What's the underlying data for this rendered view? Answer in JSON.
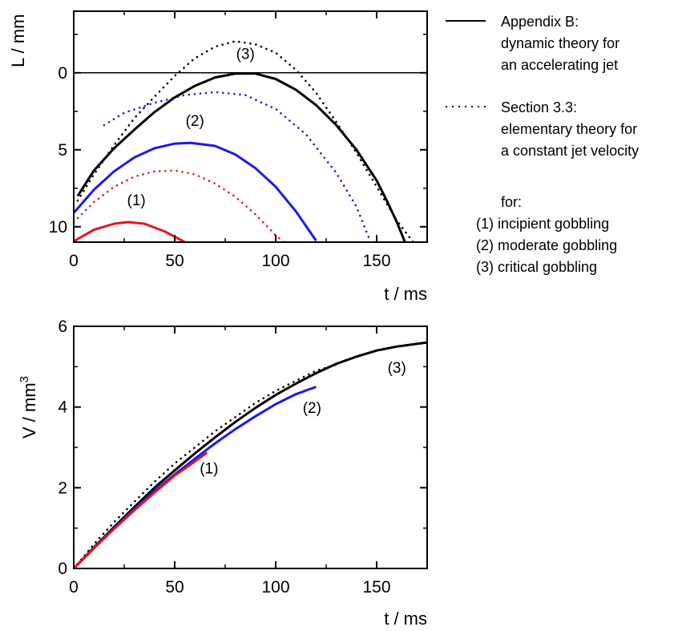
{
  "colors": {
    "axis": "#000000",
    "red": "#e8141b",
    "blue": "#1a1aee",
    "black": "#000000"
  },
  "legend": {
    "solid_lines": [
      "Appendix B:",
      "dynamic theory for",
      "an accelerating jet"
    ],
    "dotted_lines": [
      "Section 3.3:",
      "elementary theory for",
      "a constant jet velocity"
    ],
    "for_label": "for:",
    "cases": [
      "(1) incipient gobbling",
      "(2) moderate gobbling",
      "(3) critical gobbling"
    ]
  },
  "chart_data": [
    {
      "type": "line",
      "xlabel": "t / ms",
      "ylabel": "L / mm",
      "xlim": [
        0,
        175
      ],
      "ylim": [
        11,
        -4
      ],
      "y_inverted": true,
      "xticks": [
        "0",
        "50",
        "100",
        "150"
      ],
      "yticks": [
        "0",
        "5",
        "10"
      ],
      "xtick_values": [
        0,
        50,
        100,
        150
      ],
      "ytick_values": [
        0,
        5,
        10
      ],
      "reference_line": {
        "y": 0
      },
      "series": [
        {
          "case": "(1)",
          "style": "solid",
          "color": "#e8141b",
          "x": [
            0,
            10,
            20,
            27,
            35,
            45,
            55
          ],
          "y": [
            10.95,
            10.2,
            9.8,
            9.7,
            9.8,
            10.3,
            11.0
          ]
        },
        {
          "case": "(1)",
          "style": "dotted",
          "color": "#e8141b",
          "x": [
            0,
            10,
            20,
            30,
            40,
            50,
            60,
            70,
            80,
            90,
            100,
            104
          ],
          "y": [
            9.7,
            8.4,
            7.4,
            6.75,
            6.4,
            6.35,
            6.6,
            7.2,
            8.05,
            9.2,
            10.55,
            11.0
          ]
        },
        {
          "case": "(2)",
          "style": "solid",
          "color": "#1a1aee",
          "x": [
            0,
            10,
            20,
            30,
            40,
            50,
            58,
            70,
            80,
            90,
            100,
            110,
            120
          ],
          "y": [
            9.1,
            7.6,
            6.4,
            5.5,
            4.9,
            4.6,
            4.55,
            4.75,
            5.3,
            6.2,
            7.4,
            9.0,
            10.9
          ]
        },
        {
          "case": "(2)",
          "style": "dotted",
          "color": "#1a1aee",
          "x": [
            15,
            25,
            40,
            55,
            70,
            85,
            100,
            115,
            130,
            140,
            147
          ],
          "y": [
            3.4,
            2.6,
            1.95,
            1.45,
            1.25,
            1.45,
            2.35,
            4.0,
            6.5,
            8.7,
            11.0
          ]
        },
        {
          "case": "(3)",
          "style": "solid",
          "color": "#000000",
          "x": [
            2,
            10,
            20,
            30,
            40,
            50,
            60,
            70,
            80,
            90,
            100,
            110,
            120,
            130,
            140,
            150,
            155,
            160,
            164
          ],
          "y": [
            8.0,
            6.35,
            4.9,
            3.7,
            2.55,
            1.6,
            0.85,
            0.3,
            0.05,
            0.05,
            0.4,
            1.1,
            2.1,
            3.4,
            5.0,
            7.0,
            8.3,
            9.7,
            11.0
          ]
        },
        {
          "case": "(3)",
          "style": "dotted",
          "color": "#000000",
          "x": [
            2,
            10,
            20,
            30,
            40,
            50,
            60,
            70,
            80,
            90,
            100,
            110,
            120,
            130,
            140,
            150,
            160,
            168
          ],
          "y": [
            8.3,
            6.6,
            4.7,
            2.95,
            1.55,
            0.2,
            -0.95,
            -1.7,
            -2.05,
            -1.85,
            -1.3,
            -0.2,
            1.3,
            3.2,
            5.2,
            7.4,
            9.6,
            11.0
          ]
        }
      ],
      "annotations": [
        {
          "text": "(1)",
          "x": 31,
          "y": 8.6
        },
        {
          "text": "(2)",
          "x": 60,
          "y": 3.45
        },
        {
          "text": "(3)",
          "x": 85,
          "y": -0.9
        }
      ]
    },
    {
      "type": "line",
      "xlabel": "t / ms",
      "ylabel": "V / mm",
      "ylabel_superscript": "3",
      "xlim": [
        0,
        175
      ],
      "ylim": [
        0,
        6
      ],
      "xticks": [
        "0",
        "50",
        "100",
        "150"
      ],
      "yticks": [
        "0",
        "2",
        "4",
        "6"
      ],
      "xtick_values": [
        0,
        50,
        100,
        150
      ],
      "ytick_values": [
        0,
        2,
        4,
        6
      ],
      "series": [
        {
          "case": "(3)",
          "style": "dotted",
          "color": "#000000",
          "x": [
            0,
            10,
            20,
            30,
            40,
            50,
            60,
            70,
            80,
            90,
            100,
            110,
            120,
            130
          ],
          "y": [
            0,
            0.6,
            1.15,
            1.65,
            2.15,
            2.6,
            3.0,
            3.4,
            3.75,
            4.1,
            4.4,
            4.65,
            4.9,
            5.05
          ]
        },
        {
          "case": "(3)",
          "style": "solid",
          "color": "#000000",
          "x": [
            0,
            10,
            20,
            30,
            40,
            50,
            60,
            70,
            80,
            90,
            100,
            110,
            120,
            130,
            140,
            150,
            160,
            175
          ],
          "y": [
            0,
            0.52,
            1.03,
            1.52,
            2.0,
            2.43,
            2.85,
            3.25,
            3.63,
            3.98,
            4.3,
            4.58,
            4.84,
            5.07,
            5.25,
            5.4,
            5.5,
            5.6
          ]
        },
        {
          "case": "(2)",
          "style": "solid",
          "color": "#1a1aee",
          "x": [
            0,
            10,
            20,
            30,
            40,
            50,
            60,
            70,
            80,
            90,
            100,
            110,
            120
          ],
          "y": [
            0,
            0.5,
            1.0,
            1.47,
            1.92,
            2.33,
            2.72,
            3.1,
            3.45,
            3.77,
            4.07,
            4.32,
            4.5
          ]
        },
        {
          "case": "(1)",
          "style": "solid",
          "color": "#e8141b",
          "x": [
            0,
            10,
            20,
            30,
            40,
            50,
            60,
            66
          ],
          "y": [
            0,
            0.5,
            0.98,
            1.44,
            1.88,
            2.3,
            2.65,
            2.87
          ]
        }
      ],
      "annotations": [
        {
          "text": "(1)",
          "x": 67,
          "y": 2.35
        },
        {
          "text": "(2)",
          "x": 118,
          "y": 3.85
        },
        {
          "text": "(3)",
          "x": 160,
          "y": 4.85
        }
      ]
    }
  ]
}
